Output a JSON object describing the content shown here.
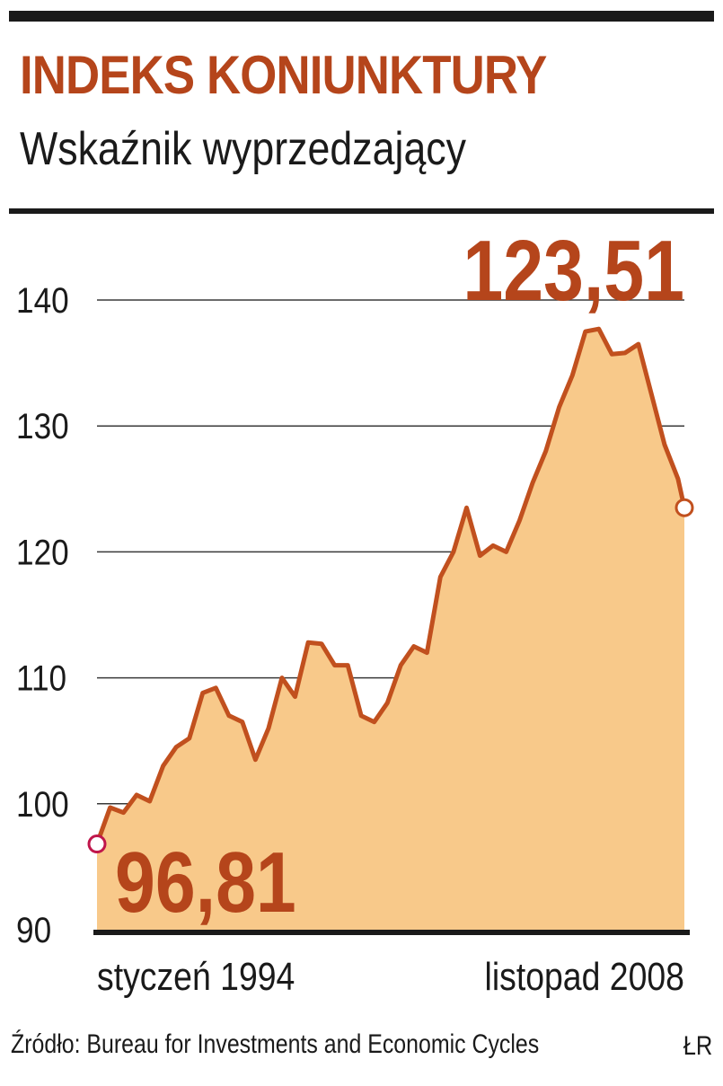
{
  "header": {
    "title": "INDEKS KONIUNKTURY",
    "subtitle": "Wskaźnik wyprzedzający"
  },
  "footer": {
    "source": "Źródło: Bureau for Investments and Economic Cycles",
    "credit": "ŁR"
  },
  "colors": {
    "accent": "#b5451b",
    "fill": "#f8c98a",
    "line": "#c1501e",
    "grid": "#3a3a3a",
    "text": "#1a1a1a"
  },
  "chart_data": {
    "type": "area",
    "ylim": [
      90,
      140
    ],
    "yticks": [
      "140",
      "130",
      "120",
      "110",
      "100",
      "90"
    ],
    "grid": true,
    "x_labels": {
      "start": "styczeń 1994",
      "end": "listopad 2008"
    },
    "annotations": {
      "start_value": "96,81",
      "end_value": "123,51"
    },
    "x": [
      1994.0,
      1994.33,
      1994.67,
      1995.0,
      1995.33,
      1995.67,
      1996.0,
      1996.33,
      1996.67,
      1997.0,
      1997.33,
      1997.67,
      1998.0,
      1998.33,
      1998.67,
      1999.0,
      1999.33,
      1999.67,
      2000.0,
      2000.33,
      2000.67,
      2001.0,
      2001.33,
      2001.67,
      2002.0,
      2002.33,
      2002.67,
      2003.0,
      2003.33,
      2003.67,
      2004.0,
      2004.33,
      2004.67,
      2005.0,
      2005.33,
      2005.67,
      2006.0,
      2006.33,
      2006.67,
      2007.0,
      2007.33,
      2007.67,
      2008.0,
      2008.33,
      2008.67,
      2008.83
    ],
    "values": [
      96.81,
      99.7,
      99.3,
      100.7,
      100.2,
      103.0,
      104.5,
      105.2,
      108.8,
      109.2,
      107.0,
      106.5,
      103.5,
      106.0,
      110.0,
      108.5,
      112.8,
      112.7,
      111.0,
      111.0,
      107.0,
      106.5,
      108.0,
      111.0,
      112.5,
      112.0,
      118.0,
      120.0,
      123.5,
      119.7,
      120.5,
      120.0,
      122.5,
      125.5,
      128.0,
      131.5,
      134.0,
      137.5,
      137.7,
      135.7,
      135.8,
      136.5,
      132.5,
      128.5,
      125.8,
      123.51
    ]
  }
}
